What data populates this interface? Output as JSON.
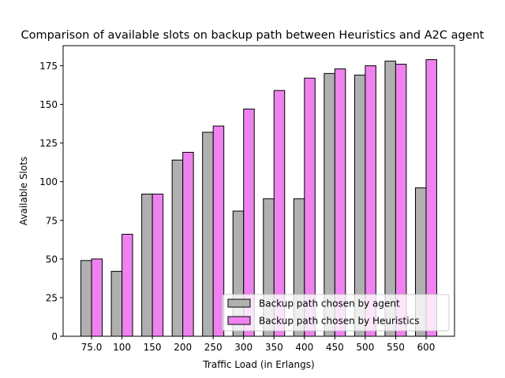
{
  "chart_data": {
    "type": "bar",
    "title": "Comparison of available slots on backup path between Heuristics and A2C agent",
    "xlabel": "Traffic Load (in Erlangs)",
    "ylabel": "Available Slots",
    "categories": [
      "75.0",
      "100",
      "150",
      "200",
      "250",
      "300",
      "350",
      "400",
      "450",
      "500",
      "550",
      "600"
    ],
    "ylim": [
      0,
      188
    ],
    "yticks": [
      0,
      25,
      50,
      75,
      100,
      125,
      150,
      175
    ],
    "series": [
      {
        "name": "Backup path chosen by agent",
        "color": "#b0b0b0",
        "values": [
          49,
          42,
          92,
          114,
          132,
          81,
          89,
          89,
          170,
          169,
          178,
          96
        ]
      },
      {
        "name": "Backup path chosen by Heuristics",
        "color": "#ee82ee",
        "values": [
          50,
          66,
          92,
          119,
          136,
          147,
          159,
          167,
          173,
          175,
          176,
          179
        ]
      }
    ],
    "legend_position": "lower-right",
    "grid": false
  }
}
